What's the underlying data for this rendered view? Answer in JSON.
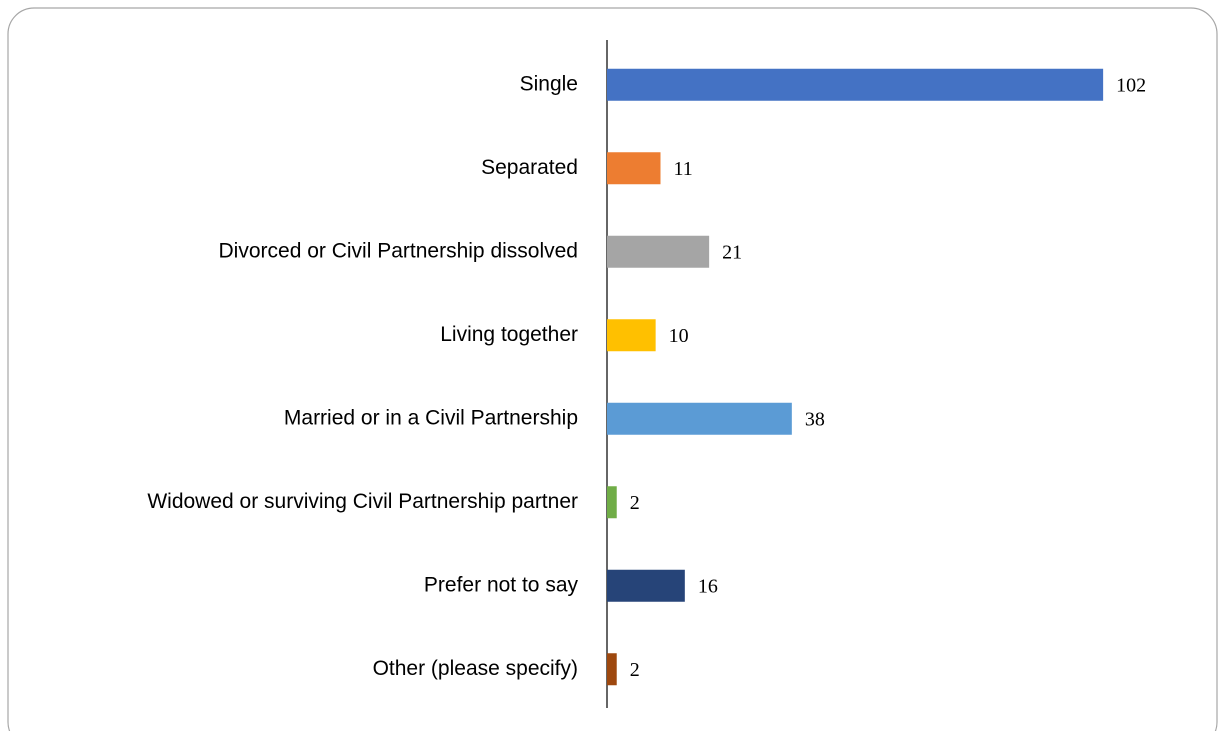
{
  "chart_data": {
    "type": "barh",
    "categories": [
      "Single",
      "Separated",
      "Divorced or Civil Partnership dissolved",
      "Living together",
      "Married or in a Civil Partnership",
      "Widowed or surviving Civil Partnership partner",
      "Prefer not to say",
      "Other (please specify)"
    ],
    "values": [
      102,
      11,
      21,
      10,
      38,
      2,
      16,
      2
    ],
    "colors": [
      "#4472c4",
      "#ed7d31",
      "#a5a5a5",
      "#ffc000",
      "#5b9bd5",
      "#70ad47",
      "#264478",
      "#9e480e"
    ],
    "xlim": [
      0,
      125
    ]
  }
}
